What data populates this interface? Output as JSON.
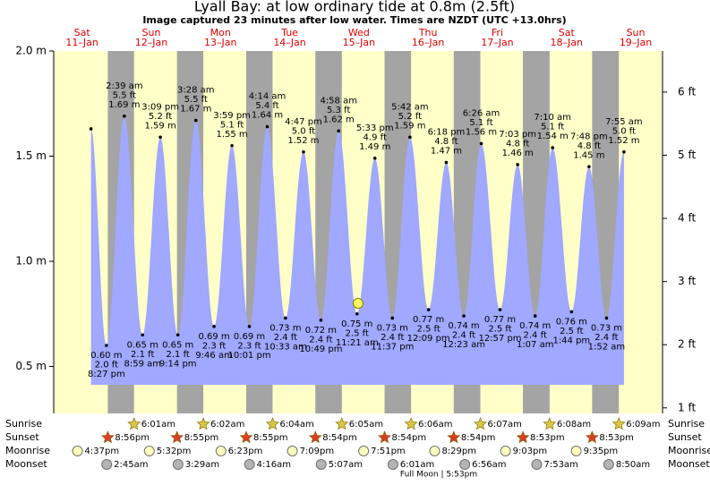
{
  "chart_data": {
    "type": "tide",
    "title": "Lyall Bay: at low  ordinary tide at 0.8m (2.5ft)",
    "subtitle": "Image captured 23 minutes after low water. Times are NZDT (UTC +13.0hrs)",
    "xlim": [
      2.17,
      213.3
    ],
    "ylim": [
      0.3,
      2.0
    ],
    "yticks": [
      {
        "value": 2.0,
        "label": "2.0 m"
      },
      {
        "value": 1.5,
        "label": "1.5 m"
      },
      {
        "value": 1.0,
        "label": "1.0 m"
      },
      {
        "value": 0.5,
        "label": "0.5 m"
      }
    ],
    "y2lim": [
      0.99,
      6.65
    ],
    "y2ticks": [
      {
        "value": 6,
        "label": "6 ft"
      },
      {
        "value": 5,
        "label": "5 ft"
      },
      {
        "value": 4,
        "label": "4 ft"
      },
      {
        "value": 3,
        "label": "3 ft"
      },
      {
        "value": 2,
        "label": "2 ft"
      },
      {
        "value": 1,
        "label": "1 ft"
      }
    ],
    "colors": {
      "water": "#a0a8ff",
      "day": "#ffffc8",
      "night": "#a4a4a4"
    },
    "days": [
      {
        "name": "Sat",
        "date": "11–Jan",
        "hour": 12
      },
      {
        "name": "Sun",
        "date": "12–Jan",
        "hour": 36
      },
      {
        "name": "Mon",
        "date": "13–Jan",
        "hour": 60
      },
      {
        "name": "Tue",
        "date": "14–Jan",
        "hour": 84
      },
      {
        "name": "Wed",
        "date": "15–Jan",
        "hour": 108
      },
      {
        "name": "Thu",
        "date": "16–Jan",
        "hour": 132
      },
      {
        "name": "Fri",
        "date": "17–Jan",
        "hour": 156
      },
      {
        "name": "Sat",
        "date": "18–Jan",
        "hour": 180
      },
      {
        "name": "Sun",
        "date": "19–Jan",
        "hour": 204
      }
    ],
    "tides": [
      {
        "hour": 15.1,
        "m": 1.63
      },
      {
        "hour": 20.45,
        "m": 0.6,
        "value_label": "0.60 m",
        "ft": "2.0 ft",
        "time": "8:27 pm"
      },
      {
        "hour": 26.65,
        "m": 1.69,
        "value_label": "1.69 m",
        "ft": "5.5 ft",
        "time": "2:39 am"
      },
      {
        "hour": 32.98,
        "m": 0.65,
        "value_label": "0.65 m",
        "ft": "2.1 ft",
        "time": "8:59 am"
      },
      {
        "hour": 39.15,
        "m": 1.59,
        "value_label": "1.59 m",
        "ft": "5.2 ft",
        "time": "3:09 pm"
      },
      {
        "hour": 45.23,
        "m": 0.65,
        "value_label": "0.65 m",
        "ft": "2.1 ft",
        "time": "9:14 pm"
      },
      {
        "hour": 51.47,
        "m": 1.67,
        "value_label": "1.67 m",
        "ft": "5.5 ft",
        "time": "3:28 am"
      },
      {
        "hour": 57.77,
        "m": 0.69,
        "value_label": "0.69 m",
        "ft": "2.3 ft",
        "time": "9:46 am"
      },
      {
        "hour": 63.98,
        "m": 1.55,
        "value_label": "1.55 m",
        "ft": "5.1 ft",
        "time": "3:59 pm"
      },
      {
        "hour": 70.02,
        "m": 0.69,
        "value_label": "0.69 m",
        "ft": "2.3 ft",
        "time": "10:01 pm"
      },
      {
        "hour": 76.23,
        "m": 1.64,
        "value_label": "1.64 m",
        "ft": "5.4 ft",
        "time": "4:14 am"
      },
      {
        "hour": 82.55,
        "m": 0.73,
        "value_label": "0.73 m",
        "ft": "2.4 ft",
        "time": "10:33 am"
      },
      {
        "hour": 88.78,
        "m": 1.52,
        "value_label": "1.52 m",
        "ft": "5.0 ft",
        "time": "4:47 pm"
      },
      {
        "hour": 94.82,
        "m": 0.72,
        "value_label": "0.72 m",
        "ft": "2.4 ft",
        "time": "10:49 pm"
      },
      {
        "hour": 100.97,
        "m": 1.62,
        "value_label": "1.62 m",
        "ft": "5.3 ft",
        "time": "4:58 am"
      },
      {
        "hour": 107.35,
        "m": 0.75,
        "value_label": "0.75 m",
        "ft": "2.5 ft",
        "time": "11:21 am"
      },
      {
        "hour": 113.55,
        "m": 1.49,
        "value_label": "1.49 m",
        "ft": "4.9 ft",
        "time": "5:33 pm"
      },
      {
        "hour": 119.62,
        "m": 0.73,
        "value_label": "0.73 m",
        "ft": "2.4 ft",
        "time": "11:37 pm"
      },
      {
        "hour": 125.7,
        "m": 1.59,
        "value_label": "1.59 m",
        "ft": "5.2 ft",
        "time": "5:42 am"
      },
      {
        "hour": 132.15,
        "m": 0.77,
        "value_label": "0.77 m",
        "ft": "2.5 ft",
        "time": "12:09 pm"
      },
      {
        "hour": 138.3,
        "m": 1.47,
        "value_label": "1.47 m",
        "ft": "4.8 ft",
        "time": "6:18 pm"
      },
      {
        "hour": 144.38,
        "m": 0.74,
        "value_label": "0.74 m",
        "ft": "2.4 ft",
        "time": "12:23 am"
      },
      {
        "hour": 150.43,
        "m": 1.56,
        "value_label": "1.56 m",
        "ft": "5.1 ft",
        "time": "6:26 am"
      },
      {
        "hour": 156.95,
        "m": 0.77,
        "value_label": "0.77 m",
        "ft": "2.5 ft",
        "time": "12:57 pm"
      },
      {
        "hour": 163.05,
        "m": 1.46,
        "value_label": "1.46 m",
        "ft": "4.8 ft",
        "time": "7:03 pm"
      },
      {
        "hour": 169.12,
        "m": 0.74,
        "value_label": "0.74 m",
        "ft": "2.4 ft",
        "time": "1:07 am"
      },
      {
        "hour": 175.17,
        "m": 1.54,
        "value_label": "1.54 m",
        "ft": "5.1 ft",
        "time": "7:10 am"
      },
      {
        "hour": 181.73,
        "m": 0.76,
        "value_label": "0.76 m",
        "ft": "2.5 ft",
        "time": "1:44 pm"
      },
      {
        "hour": 187.8,
        "m": 1.45,
        "value_label": "1.45 m",
        "ft": "4.8 ft",
        "time": "7:48 pm"
      },
      {
        "hour": 193.87,
        "m": 0.73,
        "value_label": "0.73 m",
        "ft": "2.4 ft",
        "time": "1:52 am"
      },
      {
        "hour": 199.92,
        "m": 1.52,
        "value_label": "1.52 m",
        "ft": "5.0 ft",
        "time": "7:55 am"
      }
    ],
    "now": {
      "hour": 107.73,
      "m": 0.8
    },
    "events": [
      {
        "row": "Sunrise",
        "icon": "sunrise",
        "items": [
          {
            "hour": 30.02,
            "label": "6:01am"
          },
          {
            "hour": 54.03,
            "label": "6:02am"
          },
          {
            "hour": 78.07,
            "label": "6:04am"
          },
          {
            "hour": 102.08,
            "label": "6:05am"
          },
          {
            "hour": 126.1,
            "label": "6:06am"
          },
          {
            "hour": 150.12,
            "label": "6:07am"
          },
          {
            "hour": 174.13,
            "label": "6:08am"
          },
          {
            "hour": 198.15,
            "label": "6:09am"
          }
        ]
      },
      {
        "row": "Sunset",
        "icon": "sunset",
        "items": [
          {
            "hour": 20.93,
            "label": "8:56pm"
          },
          {
            "hour": 44.92,
            "label": "8:55pm"
          },
          {
            "hour": 68.92,
            "label": "8:55pm"
          },
          {
            "hour": 92.9,
            "label": "8:54pm"
          },
          {
            "hour": 116.9,
            "label": "8:54pm"
          },
          {
            "hour": 140.9,
            "label": "8:54pm"
          },
          {
            "hour": 164.88,
            "label": "8:53pm"
          },
          {
            "hour": 188.88,
            "label": "8:53pm"
          }
        ]
      },
      {
        "row": "Moonrise",
        "icon": "moonrise",
        "items": [
          {
            "hour": 16.62,
            "label": "4:37pm"
          },
          {
            "hour": 41.53,
            "label": "5:32pm"
          },
          {
            "hour": 66.38,
            "label": "6:23pm"
          },
          {
            "hour": 91.15,
            "label": "7:09pm"
          },
          {
            "hour": 115.85,
            "label": "7:51pm"
          },
          {
            "hour": 140.48,
            "label": "8:29pm"
          },
          {
            "hour": 165.05,
            "label": "9:03pm"
          },
          {
            "hour": 189.58,
            "label": "9:35pm"
          }
        ]
      },
      {
        "row": "Moonset",
        "icon": "moonset",
        "items": [
          {
            "hour": 26.75,
            "label": "2:45am"
          },
          {
            "hour": 51.48,
            "label": "3:29am"
          },
          {
            "hour": 76.27,
            "label": "4:16am"
          },
          {
            "hour": 101.12,
            "label": "5:07am"
          },
          {
            "hour": 126.02,
            "label": "6:01am"
          },
          {
            "hour": 150.93,
            "label": "6:56am"
          },
          {
            "hour": 175.88,
            "label": "7:53am"
          },
          {
            "hour": 200.83,
            "label": "8:50am"
          }
        ]
      }
    ],
    "moon_phase": "Full Moon | 5:53pm"
  }
}
